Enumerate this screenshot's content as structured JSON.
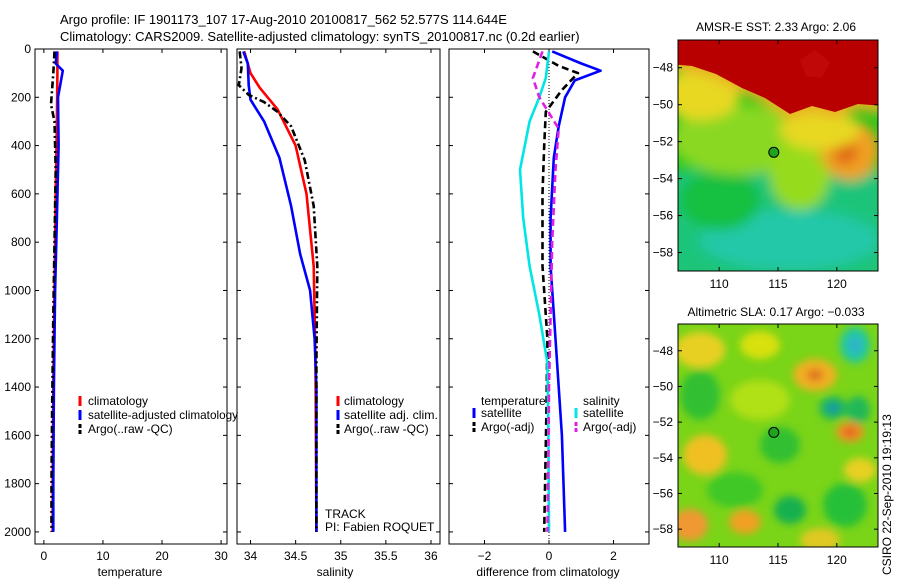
{
  "figure": {
    "title_line1": "Argo profile: IF 1901173_107 17-Aug-2010 20100817_562 52.577S 114.644E",
    "title_line2": "Climatology: CARS2009. Satellite-adjusted climatology: synTS_20100817.nc (0.2d earlier)",
    "side_stamp": "CSIRO 22-Sep-2010 19:19:13"
  },
  "colors": {
    "climatology": "#ff0000",
    "satellite": "#0000ff",
    "argo": "#000000",
    "satellite_salinity": "#00e5e5",
    "argo_salinity": "#e020e0",
    "land_frame": "#000000"
  },
  "chart_data": [
    {
      "type": "line",
      "title": "",
      "xlabel": "temperature",
      "ylabel": "",
      "xlim": [
        -1.5,
        31
      ],
      "ylim": [
        2050,
        0
      ],
      "xticks": [
        0,
        10,
        20,
        30
      ],
      "yticks": [
        0,
        200,
        400,
        600,
        800,
        1000,
        1200,
        1400,
        1600,
        1800,
        2000
      ],
      "legend": {
        "position": "lower-right",
        "entries": [
          "climatology",
          "satellite-adjusted climatology",
          "Argo(..raw -QC)"
        ]
      },
      "series": [
        {
          "name": "climatology",
          "style": "solid",
          "color": "#ff0000",
          "x": [
            2.3,
            2.3,
            2.2,
            2.0,
            1.8,
            1.6,
            1.5,
            1.5
          ],
          "y": [
            10,
            100,
            300,
            600,
            1000,
            1400,
            1800,
            2000
          ]
        },
        {
          "name": "satellite-adjusted climatology",
          "style": "solid",
          "color": "#0000ff",
          "x": [
            2.2,
            2.0,
            3.2,
            2.4,
            2.5,
            2.2,
            1.9,
            1.7,
            1.6,
            1.6
          ],
          "y": [
            10,
            60,
            90,
            200,
            400,
            700,
            1000,
            1400,
            1800,
            2000
          ]
        },
        {
          "name": "Argo(..raw -QC)",
          "style": "dashdot",
          "color": "#000000",
          "x": [
            1.8,
            1.6,
            1.2,
            1.8,
            2.0,
            1.8,
            1.6,
            1.4,
            1.3,
            1.3
          ],
          "y": [
            10,
            100,
            230,
            300,
            500,
            800,
            1100,
            1500,
            1800,
            2000
          ]
        }
      ]
    },
    {
      "type": "line",
      "title": "",
      "xlabel": "salinity",
      "ylabel": "",
      "xlim": [
        33.85,
        36.1
      ],
      "ylim": [
        2050,
        0
      ],
      "xticks": [
        34,
        34.5,
        35,
        35.5,
        36
      ],
      "xtick_labels": [
        "34",
        "34.5",
        "35",
        "35.5",
        "36"
      ],
      "legend": {
        "position": "lower-right",
        "entries": [
          "climatology",
          "satellite adj. clim.",
          "Argo(..raw -QC)"
        ]
      },
      "annotations": [
        "TRACK",
        "PI: Fabien ROQUET"
      ],
      "series": [
        {
          "name": "climatology",
          "style": "solid",
          "color": "#ff0000",
          "x": [
            33.93,
            34.0,
            34.1,
            34.3,
            34.5,
            34.62,
            34.7,
            34.72,
            34.73
          ],
          "y": [
            10,
            100,
            160,
            250,
            400,
            600,
            900,
            1300,
            2000
          ]
        },
        {
          "name": "satellite adj. clim.",
          "style": "solid",
          "color": "#0000ff",
          "x": [
            33.92,
            33.97,
            33.98,
            34.0,
            34.15,
            34.32,
            34.45,
            34.55,
            34.66,
            34.71,
            34.73,
            34.73
          ],
          "y": [
            10,
            60,
            150,
            210,
            300,
            450,
            650,
            850,
            1000,
            1200,
            1400,
            2000
          ]
        },
        {
          "name": "Argo(..raw -QC)",
          "style": "dashdot",
          "color": "#000000",
          "x": [
            33.88,
            33.9,
            33.87,
            33.98,
            34.15,
            34.3,
            34.45,
            34.6,
            34.7,
            34.74,
            34.73,
            34.73
          ],
          "y": [
            10,
            80,
            150,
            190,
            220,
            260,
            320,
            460,
            650,
            900,
            1300,
            2000
          ]
        }
      ]
    },
    {
      "type": "line",
      "title": "",
      "xlabel": "difference from climatology",
      "ylabel": "",
      "xlim": [
        -3.1,
        3.1
      ],
      "ylim": [
        2050,
        0
      ],
      "xticks": [
        -2,
        0,
        2
      ],
      "xtick_labels": [
        "−2",
        "0",
        "2"
      ],
      "reference_line_x": 0,
      "legend": {
        "position": "lower",
        "temperature_header": "temperature",
        "salinity_header": "salinity",
        "entries_left": [
          "satellite",
          "Argo(-adj)"
        ],
        "entries_right": [
          "satellite",
          "Argo(-adj)"
        ]
      },
      "series": [
        {
          "name": "temperature satellite",
          "style": "solid",
          "color": "#0000ff",
          "x": [
            0.1,
            1.0,
            1.6,
            0.8,
            0.5,
            0.3,
            0.15,
            0.05,
            0.05,
            0.2,
            0.3,
            0.4,
            0.45,
            0.5
          ],
          "y": [
            10,
            60,
            90,
            130,
            200,
            320,
            450,
            700,
            900,
            1200,
            1400,
            1600,
            1800,
            2000
          ]
        },
        {
          "name": "temperature Argo(-adj)",
          "style": "dashed",
          "color": "#000000",
          "x": [
            -0.5,
            0.3,
            0.9,
            0.4,
            -0.1,
            -0.15,
            -0.2,
            -0.2,
            -0.05,
            -0.08,
            -0.12,
            -0.15
          ],
          "y": [
            10,
            70,
            100,
            170,
            260,
            400,
            600,
            900,
            1200,
            1500,
            1800,
            2000
          ]
        },
        {
          "name": "salinity satellite",
          "style": "solid",
          "color": "#00e5e5",
          "x": [
            0.0,
            -0.1,
            -0.3,
            -0.6,
            -0.9,
            -0.8,
            -0.6,
            -0.3,
            -0.05,
            -0.02,
            0.0
          ],
          "y": [
            10,
            120,
            200,
            300,
            500,
            700,
            900,
            1100,
            1300,
            1600,
            2000
          ]
        },
        {
          "name": "salinity Argo(-adj)",
          "style": "dashed",
          "color": "#e020e0",
          "x": [
            -0.2,
            -0.5,
            -0.3,
            0.3,
            0.2,
            0.1,
            0.05,
            0.0,
            -0.02,
            -0.05
          ],
          "y": [
            10,
            120,
            200,
            330,
            500,
            800,
            1100,
            1400,
            1700,
            2000
          ]
        }
      ]
    },
    {
      "type": "heatmap",
      "title": "AMSR-E SST: 2.33 Argo: 2.06",
      "xlim": [
        106.5,
        123.5
      ],
      "ylim": [
        -59,
        -46.5
      ],
      "xticks": [
        110,
        115,
        120
      ],
      "yticks": [
        -48,
        -50,
        -52,
        -54,
        -56,
        -58
      ],
      "ytick_labels": [
        "−48",
        "−50",
        "−52",
        "−54",
        "−56",
        "−58"
      ],
      "marker": {
        "lon": 114.644,
        "lat": -52.577
      }
    },
    {
      "type": "heatmap",
      "title": "Altimetric SLA: 0.17 Argo: −0.033",
      "xlim": [
        106.5,
        123.5
      ],
      "ylim": [
        -59,
        -46.5
      ],
      "xticks": [
        110,
        115,
        120
      ],
      "yticks": [
        -48,
        -50,
        -52,
        -54,
        -56,
        -58
      ],
      "ytick_labels": [
        "−48",
        "−50",
        "−52",
        "−54",
        "−56",
        "−58"
      ],
      "marker": {
        "lon": 114.644,
        "lat": -52.577
      }
    }
  ]
}
